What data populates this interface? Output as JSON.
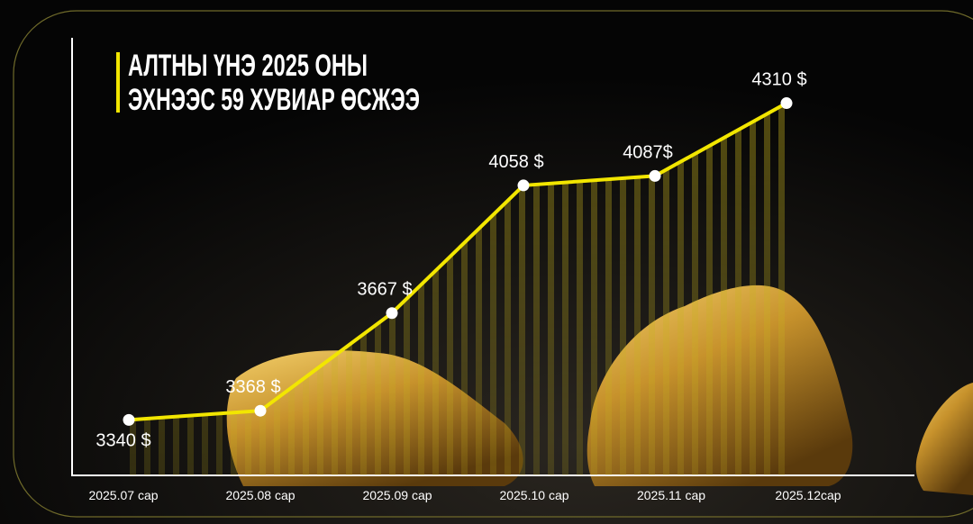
{
  "chart_data": {
    "type": "line",
    "title": [
      "АЛТНЫ ҮНЭ 2025 ОНЫ",
      "ЭХНЭЭС 59 ХУВИАР ӨСЖЭЭ"
    ],
    "categories": [
      "2025.07 сар",
      "2025.08 сар",
      "2025.09 сар",
      "2025.10 сар",
      "2025.11 сар",
      "2025.12сар"
    ],
    "values": [
      3340,
      3368,
      3667,
      4058,
      4087,
      4310
    ],
    "value_labels": [
      "3340 $",
      "3368 $",
      "3667 $",
      "4058 $",
      "4087$",
      "4310 $"
    ],
    "color": "#f2e600",
    "ylim": [
      3170,
      4510
    ]
  }
}
